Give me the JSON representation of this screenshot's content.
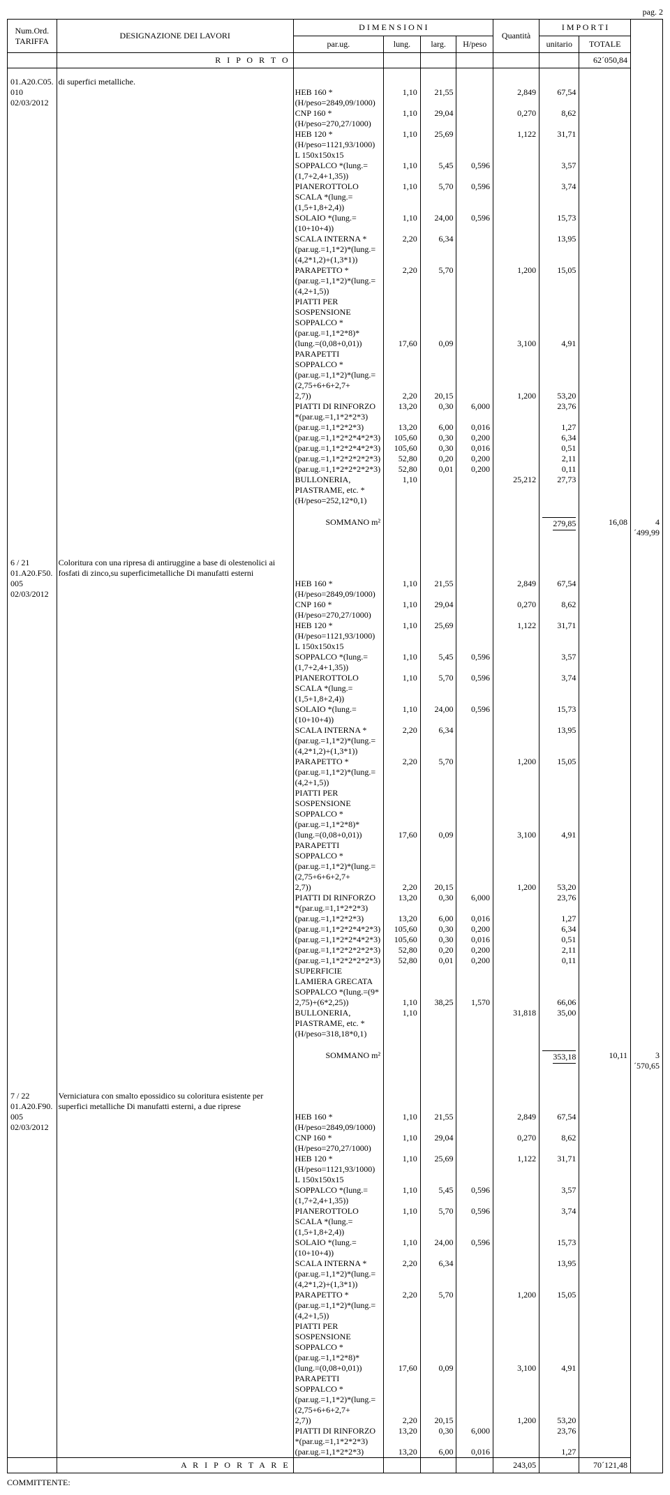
{
  "page_label": "pag. 2",
  "headers": {
    "num_ord": "Num.Ord.",
    "tariffa": "TARIFFA",
    "designazione": "DESIGNAZIONE DEI LAVORI",
    "dimensioni": "D I M E N S I O N I",
    "parug": "par.ug.",
    "lung": "lung.",
    "larg": "larg.",
    "hpeso": "H/peso",
    "quantita": "Quantità",
    "importi": "I M P O R T I",
    "unitario": "unitario",
    "totale": "TOTALE"
  },
  "riporto": {
    "label": "R I P O R T O",
    "totale": "62´050,84"
  },
  "group1": {
    "ref": [
      "01.A20.C05.",
      "010",
      "02/03/2012"
    ],
    "intro": "di superfici metalliche.",
    "rows": [
      {
        "d": "HEB 160 *(H/peso=2849,09/1000)",
        "p": "1,10",
        "l": "21,55",
        "la": "",
        "h": "2,849",
        "q": "67,54"
      },
      {
        "d": "CNP 160 *(H/peso=270,27/1000)",
        "p": "1,10",
        "l": "29,04",
        "la": "",
        "h": "0,270",
        "q": "8,62"
      },
      {
        "d": "HEB 120 *(H/peso=1121,93/1000)",
        "p": "1,10",
        "l": "25,69",
        "la": "",
        "h": "1,122",
        "q": "31,71"
      },
      {
        "d": "L 150x150x15",
        "p": "",
        "l": "",
        "la": "",
        "h": "",
        "q": ""
      },
      {
        "d": "SOPPALCO *(lung.=(1,7+2,4+1,35))",
        "p": "1,10",
        "l": "5,45",
        "la": "0,596",
        "h": "",
        "q": "3,57"
      },
      {
        "d": "PIANEROTTOLO SCALA *(lung.=(1,5+1,8+2,4))",
        "p": "1,10",
        "l": "5,70",
        "la": "0,596",
        "h": "",
        "q": "3,74"
      },
      {
        "d": "SOLAIO *(lung.=(10+10+4))",
        "p": "1,10",
        "l": "24,00",
        "la": "0,596",
        "h": "",
        "q": "15,73"
      },
      {
        "d": "SCALA INTERNA *(par.ug.=1,1*2)*(lung.=(4,2*1,2)+(1,3*1))",
        "p": "2,20",
        "l": "6,34",
        "la": "",
        "h": "",
        "q": "13,95"
      },
      {
        "d": "PARAPETTO *(par.ug.=1,1*2)*(lung.=(4,2+1,5))",
        "p": "2,20",
        "l": "5,70",
        "la": "",
        "h": "1,200",
        "q": "15,05"
      },
      {
        "d": "PIATTI PER SOSPENSIONE SOPPALCO *(par.ug.=1,1*2*8)*",
        "p": "",
        "l": "",
        "la": "",
        "h": "",
        "q": ""
      },
      {
        "d": "(lung.=(0,08+0,01))",
        "p": "17,60",
        "l": "0,09",
        "la": "",
        "h": "3,100",
        "q": "4,91"
      },
      {
        "d": "PARAPETTI SOPPALCO *(par.ug.=1,1*2)*(lung.=(2,75+6+6+2,7+",
        "p": "",
        "l": "",
        "la": "",
        "h": "",
        "q": ""
      },
      {
        "d": "2,7))",
        "p": "2,20",
        "l": "20,15",
        "la": "",
        "h": "1,200",
        "q": "53,20"
      },
      {
        "d": "PIATTI DI RINFORZO *(par.ug.=1,1*2*2*3)",
        "p": "13,20",
        "l": "0,30",
        "la": "6,000",
        "h": "",
        "q": "23,76"
      },
      {
        "d": "(par.ug.=1,1*2*2*3)",
        "p": "13,20",
        "l": "6,00",
        "la": "0,016",
        "h": "",
        "q": "1,27"
      },
      {
        "d": "(par.ug.=1,1*2*2*4*2*3)",
        "p": "105,60",
        "l": "0,30",
        "la": "0,200",
        "h": "",
        "q": "6,34"
      },
      {
        "d": "(par.ug.=1,1*2*2*4*2*3)",
        "p": "105,60",
        "l": "0,30",
        "la": "0,016",
        "h": "",
        "q": "0,51"
      },
      {
        "d": "(par.ug.=1,1*2*2*2*2*3)",
        "p": "52,80",
        "l": "0,20",
        "la": "0,200",
        "h": "",
        "q": "2,11"
      },
      {
        "d": "(par.ug.=1,1*2*2*2*2*3)",
        "p": "52,80",
        "l": "0,01",
        "la": "0,200",
        "h": "",
        "q": "0,11"
      },
      {
        "d": "BULLONERIA, PIASTRAME, etc. *(H/peso=252,12*0,1)",
        "p": "1,10",
        "l": "",
        "la": "",
        "h": "25,212",
        "q": "27,73"
      }
    ],
    "sommano_label": "SOMMANO m²",
    "sommano_qty": "279,85",
    "sommano_unit": "16,08",
    "sommano_tot": "4´499,99"
  },
  "group2": {
    "ref": [
      "6 / 21",
      "01.A20.F50.",
      "005",
      "02/03/2012"
    ],
    "intro1": "Coloritura con una ripresa di antiruggine a base di olestenolici ai",
    "intro2": "fosfati di zinco,su superficimetalliche Di manufatti esterni",
    "rows": [
      {
        "d": "HEB 160 *(H/peso=2849,09/1000)",
        "p": "1,10",
        "l": "21,55",
        "la": "",
        "h": "2,849",
        "q": "67,54"
      },
      {
        "d": "CNP 160 *(H/peso=270,27/1000)",
        "p": "1,10",
        "l": "29,04",
        "la": "",
        "h": "0,270",
        "q": "8,62"
      },
      {
        "d": "HEB 120 *(H/peso=1121,93/1000)",
        "p": "1,10",
        "l": "25,69",
        "la": "",
        "h": "1,122",
        "q": "31,71"
      },
      {
        "d": "L 150x150x15",
        "p": "",
        "l": "",
        "la": "",
        "h": "",
        "q": ""
      },
      {
        "d": "SOPPALCO *(lung.=(1,7+2,4+1,35))",
        "p": "1,10",
        "l": "5,45",
        "la": "0,596",
        "h": "",
        "q": "3,57"
      },
      {
        "d": "PIANEROTTOLO SCALA *(lung.=(1,5+1,8+2,4))",
        "p": "1,10",
        "l": "5,70",
        "la": "0,596",
        "h": "",
        "q": "3,74"
      },
      {
        "d": "SOLAIO *(lung.=(10+10+4))",
        "p": "1,10",
        "l": "24,00",
        "la": "0,596",
        "h": "",
        "q": "15,73"
      },
      {
        "d": "SCALA INTERNA *(par.ug.=1,1*2)*(lung.=(4,2*1,2)+(1,3*1))",
        "p": "2,20",
        "l": "6,34",
        "la": "",
        "h": "",
        "q": "13,95"
      },
      {
        "d": "PARAPETTO *(par.ug.=1,1*2)*(lung.=(4,2+1,5))",
        "p": "2,20",
        "l": "5,70",
        "la": "",
        "h": "1,200",
        "q": "15,05"
      },
      {
        "d": "PIATTI PER SOSPENSIONE SOPPALCO *(par.ug.=1,1*2*8)*",
        "p": "",
        "l": "",
        "la": "",
        "h": "",
        "q": ""
      },
      {
        "d": "(lung.=(0,08+0,01))",
        "p": "17,60",
        "l": "0,09",
        "la": "",
        "h": "3,100",
        "q": "4,91"
      },
      {
        "d": "PARAPETTI SOPPALCO *(par.ug.=1,1*2)*(lung.=(2,75+6+6+2,7+",
        "p": "",
        "l": "",
        "la": "",
        "h": "",
        "q": ""
      },
      {
        "d": "2,7))",
        "p": "2,20",
        "l": "20,15",
        "la": "",
        "h": "1,200",
        "q": "53,20"
      },
      {
        "d": "PIATTI DI RINFORZO *(par.ug.=1,1*2*2*3)",
        "p": "13,20",
        "l": "0,30",
        "la": "6,000",
        "h": "",
        "q": "23,76"
      },
      {
        "d": "(par.ug.=1,1*2*2*3)",
        "p": "13,20",
        "l": "6,00",
        "la": "0,016",
        "h": "",
        "q": "1,27"
      },
      {
        "d": "(par.ug.=1,1*2*2*4*2*3)",
        "p": "105,60",
        "l": "0,30",
        "la": "0,200",
        "h": "",
        "q": "6,34"
      },
      {
        "d": "(par.ug.=1,1*2*2*4*2*3)",
        "p": "105,60",
        "l": "0,30",
        "la": "0,016",
        "h": "",
        "q": "0,51"
      },
      {
        "d": "(par.ug.=1,1*2*2*2*2*3)",
        "p": "52,80",
        "l": "0,20",
        "la": "0,200",
        "h": "",
        "q": "2,11"
      },
      {
        "d": "(par.ug.=1,1*2*2*2*2*3)",
        "p": "52,80",
        "l": "0,01",
        "la": "0,200",
        "h": "",
        "q": "0,11"
      },
      {
        "d": "SUPERFICIE LAMIERA GRECATA SOPPALCO *(lung.=(9*",
        "p": "",
        "l": "",
        "la": "",
        "h": "",
        "q": ""
      },
      {
        "d": "2,75)+(6*2,25))",
        "p": "1,10",
        "l": "38,25",
        "la": "1,570",
        "h": "",
        "q": "66,06"
      },
      {
        "d": "BULLONERIA, PIASTRAME, etc. *(H/peso=318,18*0,1)",
        "p": "1,10",
        "l": "",
        "la": "",
        "h": "31,818",
        "q": "35,00"
      }
    ],
    "sommano_label": "SOMMANO m²",
    "sommano_qty": "353,18",
    "sommano_unit": "10,11",
    "sommano_tot": "3´570,65"
  },
  "group3": {
    "ref": [
      "7 / 22",
      "01.A20.F90.",
      "005",
      "02/03/2012"
    ],
    "intro1": "Verniciatura con smalto epossidico su coloritura esistente per",
    "intro2": "superfici metalliche Di manufatti esterni, a due riprese",
    "rows": [
      {
        "d": "HEB 160 *(H/peso=2849,09/1000)",
        "p": "1,10",
        "l": "21,55",
        "la": "",
        "h": "2,849",
        "q": "67,54"
      },
      {
        "d": "CNP 160 *(H/peso=270,27/1000)",
        "p": "1,10",
        "l": "29,04",
        "la": "",
        "h": "0,270",
        "q": "8,62"
      },
      {
        "d": "HEB 120 *(H/peso=1121,93/1000)",
        "p": "1,10",
        "l": "25,69",
        "la": "",
        "h": "1,122",
        "q": "31,71"
      },
      {
        "d": "L 150x150x15",
        "p": "",
        "l": "",
        "la": "",
        "h": "",
        "q": ""
      },
      {
        "d": "SOPPALCO *(lung.=(1,7+2,4+1,35))",
        "p": "1,10",
        "l": "5,45",
        "la": "0,596",
        "h": "",
        "q": "3,57"
      },
      {
        "d": "PIANEROTTOLO SCALA *(lung.=(1,5+1,8+2,4))",
        "p": "1,10",
        "l": "5,70",
        "la": "0,596",
        "h": "",
        "q": "3,74"
      },
      {
        "d": "SOLAIO *(lung.=(10+10+4))",
        "p": "1,10",
        "l": "24,00",
        "la": "0,596",
        "h": "",
        "q": "15,73"
      },
      {
        "d": "SCALA INTERNA *(par.ug.=1,1*2)*(lung.=(4,2*1,2)+(1,3*1))",
        "p": "2,20",
        "l": "6,34",
        "la": "",
        "h": "",
        "q": "13,95"
      },
      {
        "d": "PARAPETTO *(par.ug.=1,1*2)*(lung.=(4,2+1,5))",
        "p": "2,20",
        "l": "5,70",
        "la": "",
        "h": "1,200",
        "q": "15,05"
      },
      {
        "d": "PIATTI PER SOSPENSIONE SOPPALCO *(par.ug.=1,1*2*8)*",
        "p": "",
        "l": "",
        "la": "",
        "h": "",
        "q": ""
      },
      {
        "d": "(lung.=(0,08+0,01))",
        "p": "17,60",
        "l": "0,09",
        "la": "",
        "h": "3,100",
        "q": "4,91"
      },
      {
        "d": "PARAPETTI SOPPALCO *(par.ug.=1,1*2)*(lung.=(2,75+6+6+2,7+",
        "p": "",
        "l": "",
        "la": "",
        "h": "",
        "q": ""
      },
      {
        "d": "2,7))",
        "p": "2,20",
        "l": "20,15",
        "la": "",
        "h": "1,200",
        "q": "53,20"
      },
      {
        "d": "PIATTI DI RINFORZO *(par.ug.=1,1*2*2*3)",
        "p": "13,20",
        "l": "0,30",
        "la": "6,000",
        "h": "",
        "q": "23,76"
      },
      {
        "d": "(par.ug.=1,1*2*2*3)",
        "p": "13,20",
        "l": "6,00",
        "la": "0,016",
        "h": "",
        "q": "1,27"
      }
    ]
  },
  "riportare": {
    "label": "A   R I P O R T A R E",
    "qty": "243,05",
    "tot": "70´121,48"
  },
  "committente": "COMMITTENTE:"
}
